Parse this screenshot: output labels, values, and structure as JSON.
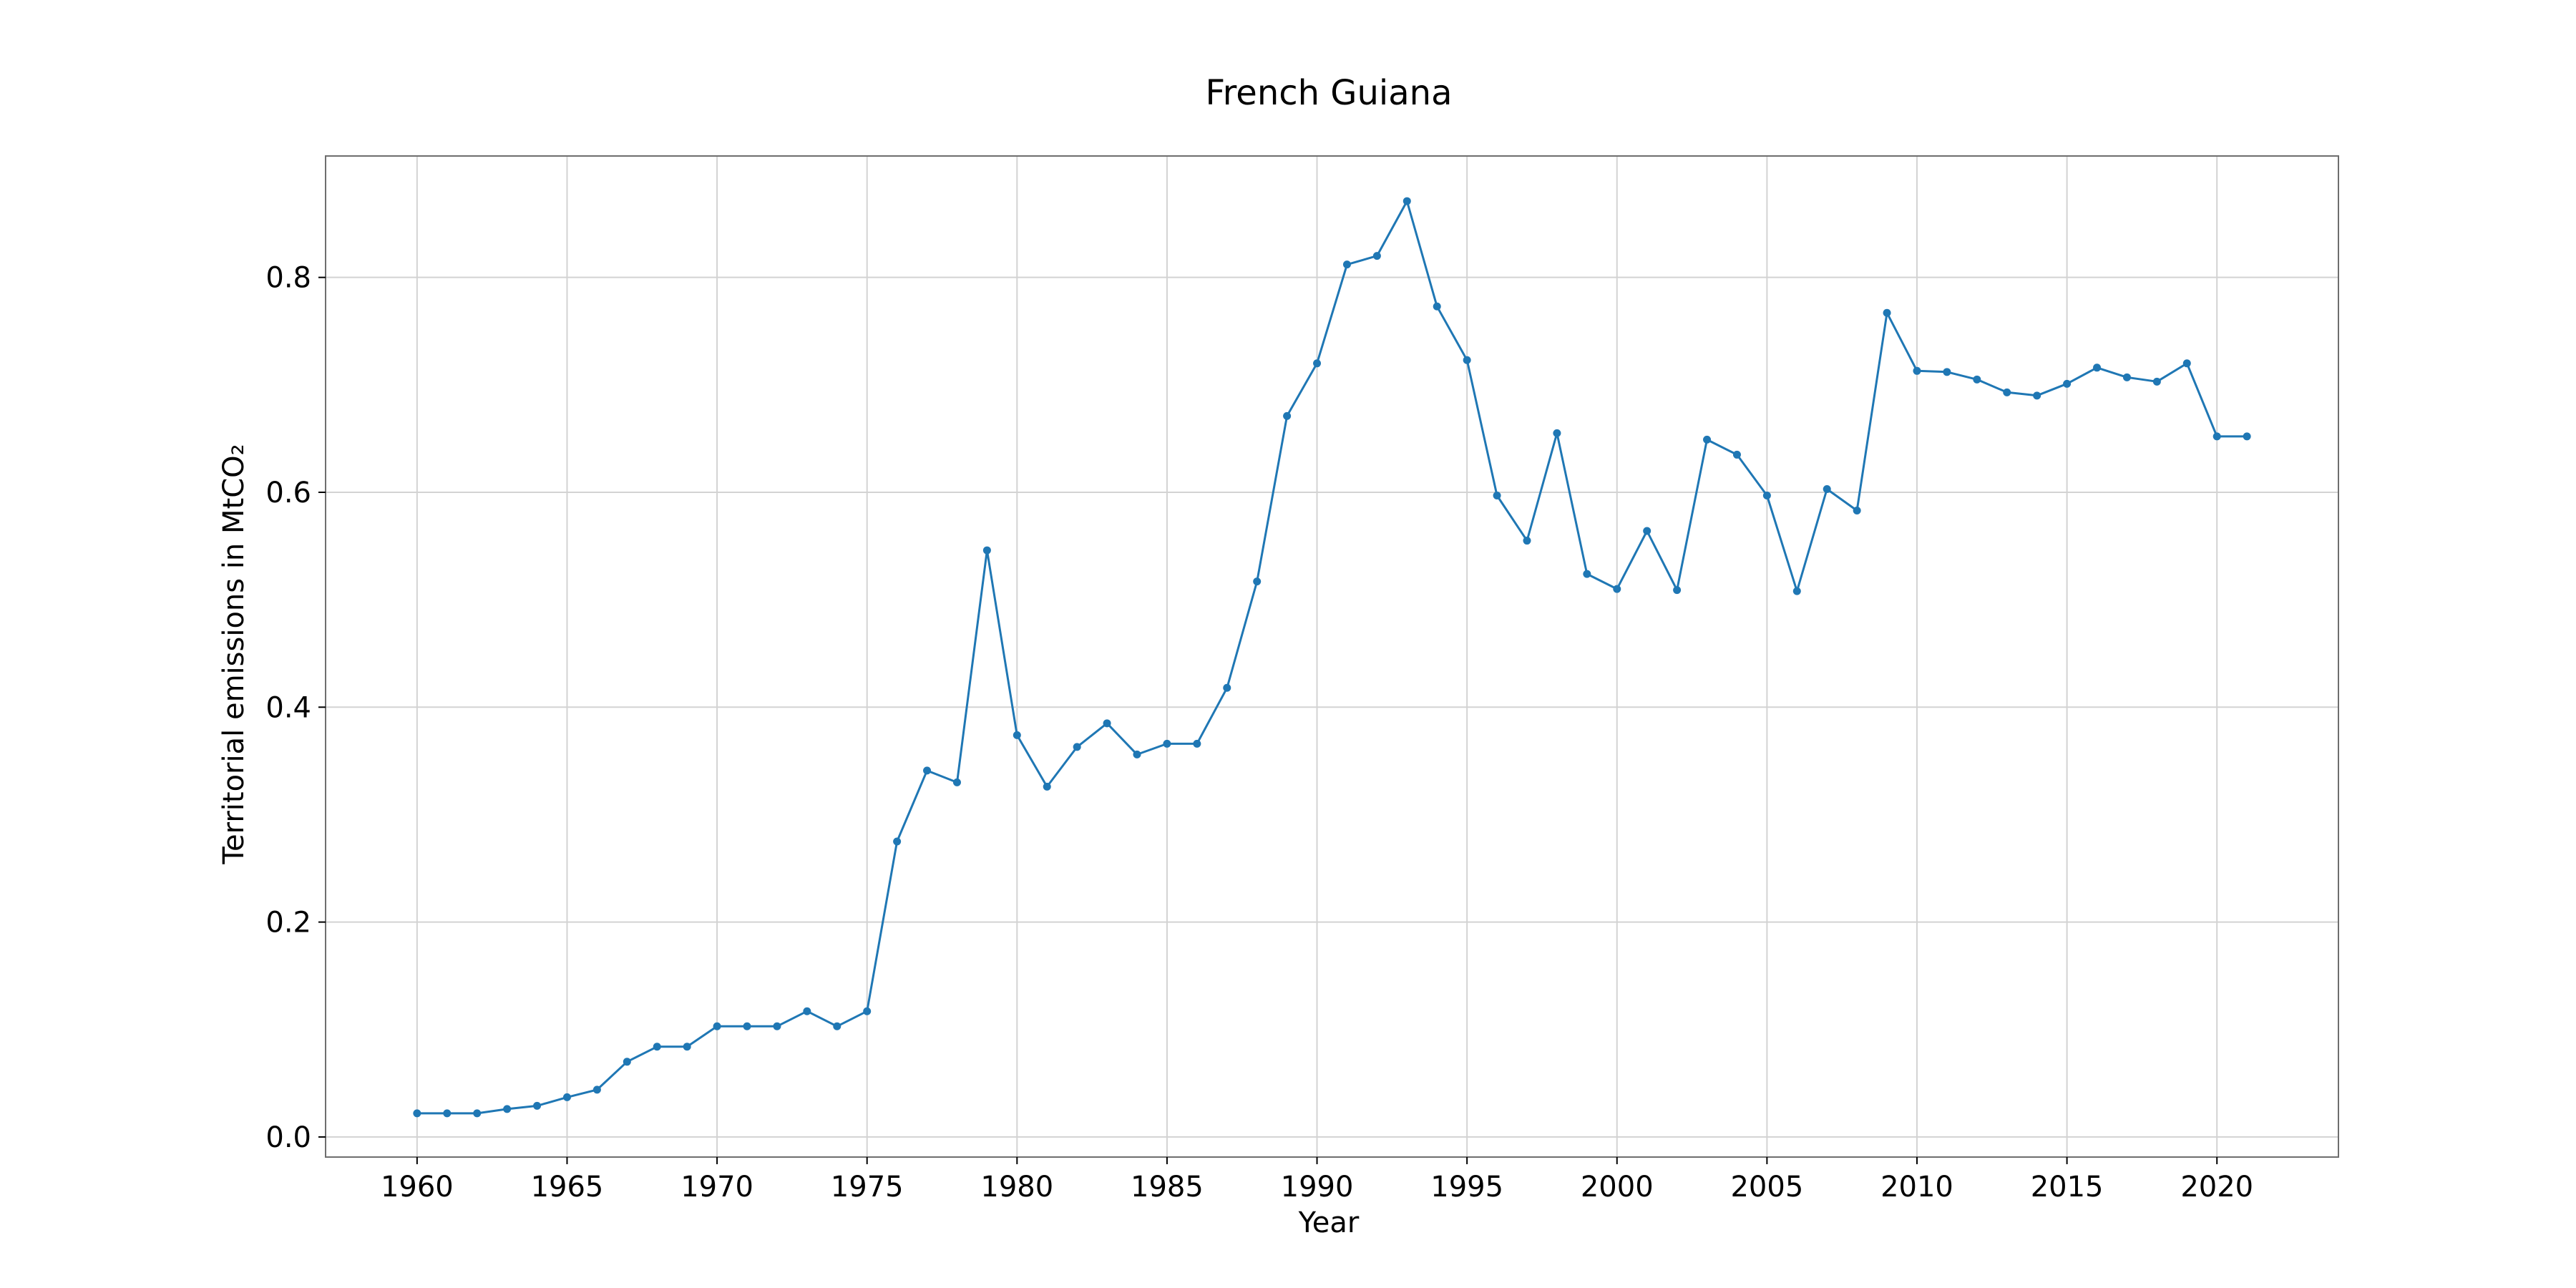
{
  "chart_data": {
    "type": "line",
    "title": "French Guiana",
    "xlabel": "Year",
    "ylabel": "Territorial emissions in MtCO₂",
    "xlim": [
      1956.95,
      2024.05
    ],
    "ylim": [
      -0.0187,
      0.913
    ],
    "xticks": [
      1960,
      1965,
      1970,
      1975,
      1980,
      1985,
      1990,
      1995,
      2000,
      2005,
      2010,
      2015,
      2020
    ],
    "yticks": [
      0.0,
      0.2,
      0.4,
      0.6,
      0.8
    ],
    "ytick_labels": [
      "0.0",
      "0.2",
      "0.4",
      "0.6",
      "0.8"
    ],
    "grid": true,
    "color": "#1f77b4",
    "x": [
      1960,
      1961,
      1962,
      1963,
      1964,
      1965,
      1966,
      1967,
      1968,
      1969,
      1970,
      1971,
      1972,
      1973,
      1974,
      1975,
      1976,
      1977,
      1978,
      1979,
      1980,
      1981,
      1982,
      1983,
      1984,
      1985,
      1986,
      1987,
      1988,
      1989,
      1990,
      1991,
      1992,
      1993,
      1994,
      1995,
      1996,
      1997,
      1998,
      1999,
      2000,
      2001,
      2002,
      2003,
      2004,
      2005,
      2006,
      2007,
      2008,
      2009,
      2010,
      2011,
      2012,
      2013,
      2014,
      2015,
      2016,
      2017,
      2018,
      2019,
      2020,
      2021
    ],
    "y": [
      0.022,
      0.022,
      0.022,
      0.026,
      0.029,
      0.037,
      0.044,
      0.07,
      0.084,
      0.084,
      0.103,
      0.103,
      0.103,
      0.117,
      0.103,
      0.117,
      0.275,
      0.341,
      0.33,
      0.546,
      0.374,
      0.326,
      0.363,
      0.385,
      0.356,
      0.366,
      0.366,
      0.418,
      0.517,
      0.671,
      0.72,
      0.812,
      0.82,
      0.871,
      0.773,
      0.723,
      0.597,
      0.555,
      0.655,
      0.524,
      0.51,
      0.564,
      0.509,
      0.649,
      0.635,
      0.597,
      0.508,
      0.603,
      0.583,
      0.767,
      0.713,
      0.712,
      0.705,
      0.693,
      0.69,
      0.701,
      0.716,
      0.707,
      0.703,
      0.72,
      0.652,
      0.652
    ]
  }
}
